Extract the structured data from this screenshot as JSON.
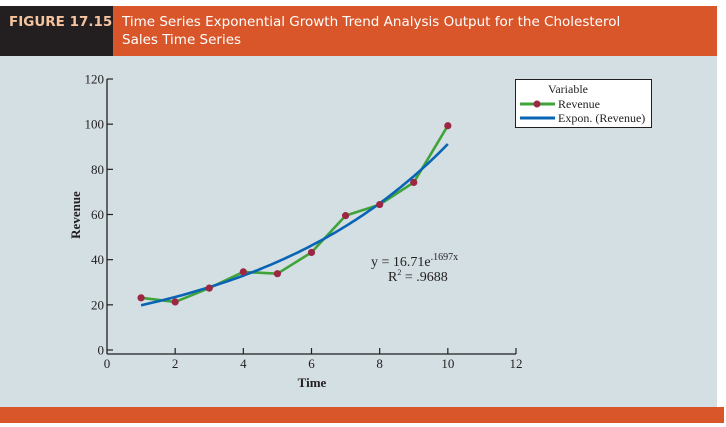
{
  "figure": {
    "label": "FIGURE 17.15",
    "title_line1": "Time Series Exponential Growth Trend Analysis Output for the Cholesterol",
    "title_line2": "Sales Time Series"
  },
  "colors": {
    "header_label_bg": "#231f20",
    "header_label_text": "#f6c4a0",
    "accent_orange": "#d9562a",
    "panel_bg": "#d4dfe4",
    "series_line": "#3fa33a",
    "series_marker": "#9b2743",
    "trend_line": "#0a64b4"
  },
  "chart_data": {
    "type": "line",
    "title": "",
    "xlabel": "Time",
    "ylabel": "Revenue",
    "xlim": [
      0,
      12
    ],
    "ylim": [
      0,
      120
    ],
    "xticks": [
      0,
      2,
      4,
      6,
      8,
      10,
      12
    ],
    "yticks": [
      0,
      20,
      40,
      60,
      80,
      100,
      120
    ],
    "grid": false,
    "legend_position": "top-right",
    "legend_title": "Variable",
    "series": [
      {
        "name": "Revenue",
        "style": "line-with-markers",
        "x": [
          1,
          2,
          3,
          4,
          5,
          6,
          7,
          8,
          9,
          10
        ],
        "values": [
          23.1,
          21.3,
          27.4,
          34.6,
          33.8,
          43.2,
          59.5,
          64.4,
          74.2,
          99.3
        ]
      },
      {
        "name": "Expon. (Revenue)",
        "style": "trendline",
        "equation": {
          "a": 16.71,
          "b": 0.1697,
          "form": "a*exp(b*x)"
        },
        "x_range": [
          1,
          10
        ]
      }
    ],
    "annotations": {
      "equation_prefix": "y = 16.71e",
      "equation_exponent": ".1697x",
      "r2_prefix": "R",
      "r2_superscript": "2",
      "r2_value": " = .9688"
    }
  }
}
